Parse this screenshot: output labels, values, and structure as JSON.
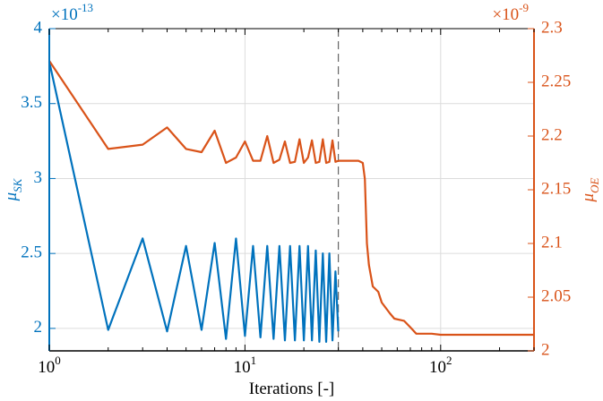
{
  "chart_data": {
    "type": "line",
    "xlabel": "Iterations [-]",
    "ylabel": {
      "text": "μ",
      "sub": "SK"
    },
    "y2label": {
      "text": "μ",
      "sub": "OE"
    },
    "yoffset": {
      "text": "×10",
      "exponent": "-13"
    },
    "y2offset": {
      "text": "×10",
      "exponent": "-9"
    },
    "xscale": "log",
    "xlim": [
      1,
      300
    ],
    "xticks": [
      {
        "value": 1,
        "label": "10",
        "exponent": "0"
      },
      {
        "value": 10,
        "label": "10",
        "exponent": "1"
      },
      {
        "value": 100,
        "label": "10",
        "exponent": "2"
      }
    ],
    "xminorticks": [
      2,
      3,
      4,
      5,
      6,
      7,
      8,
      9,
      20,
      30,
      40,
      50,
      60,
      70,
      80,
      90,
      200,
      300
    ],
    "ylim": [
      1.85,
      4
    ],
    "yticks": [
      2,
      2.5,
      3,
      3.5,
      4
    ],
    "y2lim": [
      2,
      2.3
    ],
    "y2ticks": [
      2,
      2.05,
      2.1,
      2.15,
      2.2,
      2.25,
      2.3
    ],
    "grid": true,
    "vline": 30,
    "series": [
      {
        "color": "#0072BD",
        "axis": "y",
        "x": [
          1,
          2,
          3,
          4,
          5,
          6,
          7,
          8,
          9,
          10,
          11,
          12,
          13,
          14,
          15,
          16,
          17,
          18,
          19,
          20,
          21,
          22,
          23,
          24,
          25,
          26,
          27,
          28,
          29,
          30
        ],
        "values": [
          3.78,
          1.99,
          2.6,
          1.98,
          2.55,
          1.99,
          2.57,
          1.93,
          2.6,
          1.95,
          2.55,
          1.94,
          2.55,
          1.93,
          2.55,
          1.92,
          2.55,
          1.92,
          2.55,
          1.92,
          2.55,
          1.92,
          2.52,
          1.91,
          2.5,
          1.91,
          2.5,
          1.92,
          2.38,
          1.98
        ]
      },
      {
        "color": "#D95319",
        "axis": "y2",
        "x": [
          1,
          2,
          3,
          4,
          5,
          6,
          7,
          8,
          9,
          10,
          11,
          12,
          13,
          14,
          15,
          16,
          17,
          18,
          19,
          20,
          21,
          22,
          23,
          24,
          25,
          26,
          27,
          28,
          29,
          30,
          35,
          38,
          40,
          41,
          42,
          43,
          45,
          48,
          50,
          55,
          58,
          65,
          70,
          75,
          90,
          100,
          300
        ],
        "values": [
          2.27,
          2.188,
          2.192,
          2.208,
          2.188,
          2.185,
          2.205,
          2.175,
          2.18,
          2.195,
          2.177,
          2.177,
          2.2,
          2.175,
          2.178,
          2.195,
          2.175,
          2.176,
          2.197,
          2.175,
          2.18,
          2.196,
          2.175,
          2.176,
          2.197,
          2.175,
          2.176,
          2.196,
          2.176,
          2.177,
          2.177,
          2.177,
          2.175,
          2.16,
          2.1,
          2.08,
          2.06,
          2.055,
          2.045,
          2.035,
          2.03,
          2.028,
          2.022,
          2.016,
          2.016,
          2.015,
          2.015
        ]
      }
    ]
  }
}
